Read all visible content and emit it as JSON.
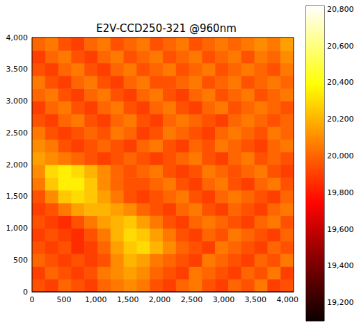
{
  "chart_data": {
    "type": "heatmap",
    "title": "E2V-CCD250-321 @960nm",
    "xlim": [
      0,
      4096
    ],
    "ylim": [
      0,
      4000
    ],
    "xticks": [
      0,
      500,
      1000,
      1500,
      2000,
      2500,
      3000,
      3500,
      4000
    ],
    "yticks": [
      0,
      500,
      1000,
      1500,
      2000,
      2500,
      3000,
      3500,
      4000
    ],
    "x_edges": [
      0,
      204.8,
      409.6,
      614.4,
      819.2,
      1024,
      1228.8,
      1433.6,
      1638.4,
      1843.2,
      2048,
      2252.8,
      2457.6,
      2662.4,
      2867.2,
      3072,
      3276.8,
      3481.6,
      3686.4,
      3891.2,
      4096
    ],
    "y_edges": [
      0,
      200,
      400,
      600,
      800,
      1000,
      1200,
      1400,
      1600,
      1800,
      2000,
      2200,
      2400,
      2600,
      2800,
      3000,
      3200,
      3400,
      3600,
      3800,
      4000
    ],
    "values": [
      [
        19950,
        19900,
        20000,
        19950,
        19900,
        20000,
        20050,
        20100,
        20050,
        19950,
        19900,
        20000,
        20050,
        19950,
        19900,
        20000,
        19950,
        20050,
        19900,
        19950
      ],
      [
        19900,
        20000,
        19950,
        19900,
        19950,
        20050,
        20100,
        20150,
        20100,
        20000,
        19950,
        19900,
        20050,
        20000,
        19950,
        19900,
        20000,
        19950,
        20050,
        19900
      ],
      [
        20000,
        19950,
        19900,
        19950,
        19900,
        19950,
        20100,
        20200,
        20150,
        20050,
        20000,
        19950,
        19900,
        20050,
        20000,
        19950,
        19900,
        20000,
        19950,
        20050
      ],
      [
        19950,
        19900,
        19950,
        19850,
        19900,
        20000,
        20150,
        20250,
        20300,
        20200,
        20100,
        20000,
        19950,
        19900,
        20050,
        20000,
        19950,
        19900,
        20000,
        19950
      ],
      [
        19900,
        19950,
        19900,
        19850,
        19950,
        20050,
        20200,
        20300,
        20250,
        20150,
        20050,
        19950,
        19900,
        20000,
        19950,
        20050,
        20000,
        19950,
        19900,
        20000
      ],
      [
        19950,
        19900,
        19850,
        19950,
        20050,
        20150,
        20200,
        20250,
        20150,
        20050,
        19950,
        19900,
        20000,
        20050,
        20000,
        19950,
        19900,
        20000,
        20050,
        19950
      ],
      [
        19900,
        19950,
        20050,
        20150,
        20200,
        20200,
        20150,
        20100,
        20000,
        19950,
        19900,
        20000,
        20050,
        19950,
        19900,
        20000,
        19950,
        19900,
        20000,
        20050
      ],
      [
        19950,
        20100,
        20250,
        20300,
        20250,
        20150,
        20050,
        19950,
        19900,
        19950,
        20000,
        20050,
        19950,
        19900,
        20000,
        20050,
        20000,
        19950,
        19900,
        20000
      ],
      [
        20050,
        20250,
        20350,
        20350,
        20250,
        20100,
        20000,
        19950,
        19950,
        20000,
        20050,
        19950,
        19900,
        20000,
        20050,
        19950,
        19900,
        20000,
        20050,
        19950
      ],
      [
        20100,
        20300,
        20350,
        20300,
        20200,
        20100,
        20000,
        19950,
        20000,
        20050,
        19950,
        19900,
        19950,
        20050,
        20000,
        19950,
        20000,
        20050,
        19950,
        19900
      ],
      [
        20150,
        20100,
        20050,
        20000,
        19950,
        19900,
        19950,
        20000,
        19950,
        19900,
        19950,
        20000,
        20050,
        19950,
        19900,
        20000,
        20050,
        19950,
        20000,
        19950
      ],
      [
        20100,
        20050,
        19950,
        19900,
        19950,
        20000,
        19950,
        19900,
        20000,
        20050,
        19950,
        19900,
        20000,
        19950,
        20050,
        20000,
        19950,
        19900,
        20000,
        20050
      ],
      [
        20050,
        19950,
        19900,
        19950,
        20000,
        19950,
        20050,
        20000,
        19900,
        19950,
        20050,
        20000,
        19950,
        19900,
        20000,
        20050,
        20000,
        19950,
        20050,
        20000
      ],
      [
        19950,
        19900,
        20000,
        20050,
        19950,
        19900,
        20000,
        20050,
        19950,
        19900,
        20000,
        20050,
        20000,
        19950,
        19900,
        20000,
        20050,
        20000,
        19950,
        20000
      ],
      [
        19900,
        20000,
        20050,
        19950,
        19900,
        20000,
        20050,
        19950,
        19900,
        20000,
        20050,
        19950,
        19900,
        20000,
        20050,
        19950,
        20000,
        20050,
        20000,
        19950
      ],
      [
        20000,
        20050,
        19950,
        19900,
        20000,
        20050,
        19950,
        19900,
        20000,
        20050,
        19950,
        19900,
        20000,
        20050,
        19950,
        20000,
        20050,
        19950,
        20000,
        20050
      ],
      [
        20050,
        19950,
        19900,
        20000,
        20050,
        19950,
        19900,
        20000,
        20050,
        19950,
        19950,
        20000,
        20050,
        19950,
        20000,
        20050,
        19950,
        20000,
        20050,
        20000
      ],
      [
        19950,
        19900,
        20000,
        20050,
        19950,
        19900,
        20000,
        20050,
        19950,
        20000,
        20050,
        19950,
        20000,
        20050,
        19950,
        20000,
        20050,
        20000,
        19950,
        20050
      ],
      [
        19900,
        20000,
        20050,
        19950,
        19900,
        20000,
        20050,
        19950,
        20000,
        20050,
        19950,
        20000,
        20050,
        19950,
        20000,
        20050,
        19950,
        20050,
        20000,
        20100
      ],
      [
        20000,
        20050,
        19950,
        19900,
        20000,
        20050,
        19950,
        20000,
        20050,
        19950,
        20000,
        20050,
        19950,
        20000,
        20050,
        20000,
        20050,
        20100,
        20050,
        20150
      ]
    ],
    "colorbar": {
      "range": [
        19100,
        20820
      ],
      "ticks": [
        19200,
        19400,
        19600,
        19800,
        20000,
        20200,
        20400,
        20600,
        20800
      ]
    }
  }
}
